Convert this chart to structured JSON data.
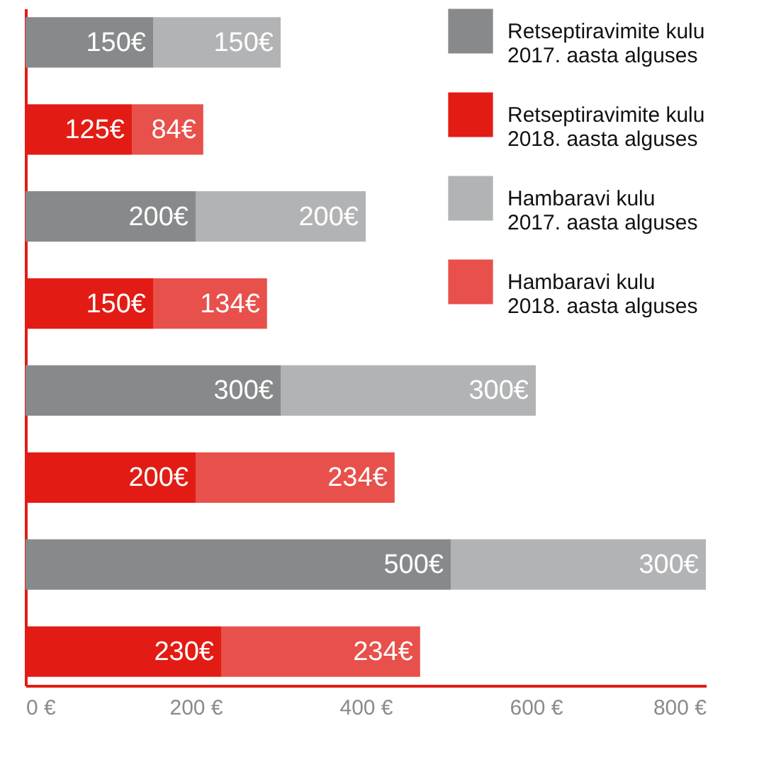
{
  "chart_data": {
    "type": "bar",
    "orientation": "horizontal",
    "stacked": true,
    "categories": [
      null,
      null,
      null,
      null,
      null,
      null,
      null,
      null
    ],
    "series": [
      {
        "name": "Retseptiravimite kulu 2017. aasta alguses",
        "color": "#87898b",
        "values": [
          150,
          null,
          200,
          null,
          300,
          null,
          500,
          null
        ],
        "value_labels": [
          "150€",
          null,
          "200€",
          null,
          "300€",
          null,
          "500€",
          null
        ]
      },
      {
        "name": "Retseptiravimite kulu 2018. aasta alguses",
        "color": "#e21c14",
        "values": [
          null,
          125,
          null,
          150,
          null,
          200,
          null,
          230
        ],
        "value_labels": [
          null,
          "125€",
          null,
          "150€",
          null,
          "200€",
          null,
          "230€"
        ]
      },
      {
        "name": "Hambaravi kulu 2017. aasta alguses",
        "color": "#b2b3b5",
        "values": [
          150,
          null,
          200,
          null,
          300,
          null,
          300,
          null
        ],
        "value_labels": [
          "150€",
          null,
          "200€",
          null,
          "300€",
          null,
          "300€",
          null
        ]
      },
      {
        "name": "Hambaravi kulu 2018. aasta alguses",
        "color": "#e8504b",
        "values": [
          null,
          84,
          null,
          134,
          null,
          234,
          null,
          234
        ],
        "value_labels": [
          null,
          "84€",
          null,
          "134€",
          null,
          "234€",
          null,
          "234€"
        ]
      }
    ],
    "xlim": [
      0,
      800
    ],
    "xticks": [
      {
        "value": 0,
        "label": "0 €"
      },
      {
        "value": 200,
        "label": "200 €"
      },
      {
        "value": 400,
        "label": "400 €"
      },
      {
        "value": 600,
        "label": "600 €"
      },
      {
        "value": 800,
        "label": "800 €"
      }
    ],
    "grid": false,
    "legend": "top right"
  }
}
